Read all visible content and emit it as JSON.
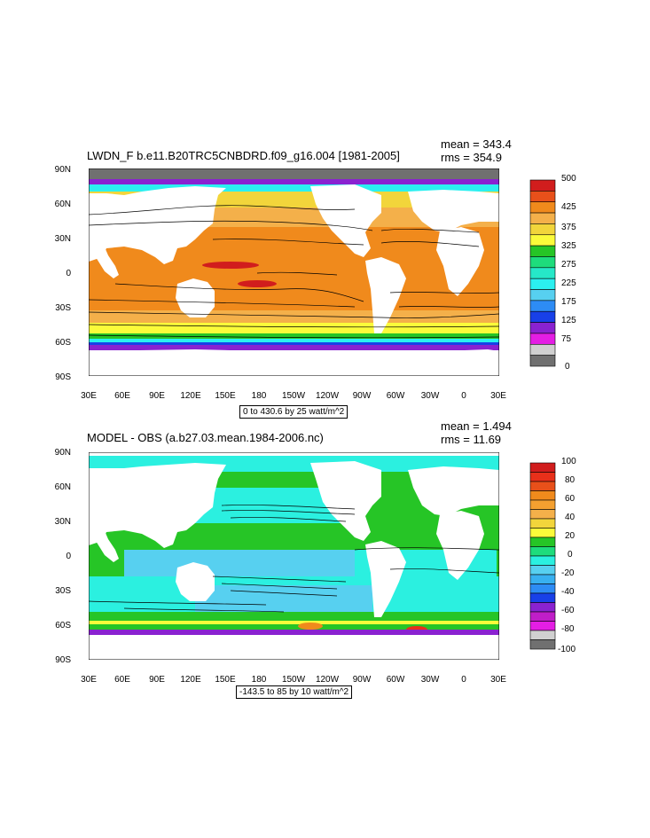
{
  "panels": [
    {
      "title": "LWDN_F b.e11.B20TRC5CNBDRD.f09_g16.004 [1981-2005]",
      "mean": "mean = 343.4",
      "rms": "rms = 354.9",
      "footer": "0 to 430.6 by 25 watt/m^2",
      "lat_ticks": [
        "90N",
        "60N",
        "30N",
        "0",
        "30S",
        "60S",
        "90S"
      ],
      "lon_ticks": [
        "30E",
        "60E",
        "90E",
        "120E",
        "150E",
        "180",
        "150W",
        "120W",
        "90W",
        "60W",
        "30W",
        "0",
        "30E"
      ],
      "colorbar": {
        "labels": [
          "500",
          "425",
          "375",
          "325",
          "275",
          "225",
          "175",
          "125",
          "75",
          "0"
        ],
        "colors": [
          "#d11d1d",
          "#e8501a",
          "#f08a1c",
          "#f4b04a",
          "#f2d53b",
          "#fbfb3a",
          "#26c526",
          "#1edc7c",
          "#26e8c8",
          "#2bf0f0",
          "#57d0f0",
          "#2d8cf5",
          "#1840e8",
          "#8a22d0",
          "#e41ee4",
          "#d0d0d0",
          "#707070"
        ]
      }
    },
    {
      "title": "MODEL - OBS (a.b27.03.mean.1984-2006.nc)",
      "mean": "mean = 1.494",
      "rms": "rms = 11.69",
      "footer": "-143.5 to 85 by 10 watt/m^2",
      "lat_ticks": [
        "90N",
        "60N",
        "30N",
        "0",
        "30S",
        "60S",
        "90S"
      ],
      "lon_ticks": [
        "30E",
        "60E",
        "90E",
        "120E",
        "150E",
        "180",
        "150W",
        "120W",
        "90W",
        "60W",
        "30W",
        "0",
        "30E"
      ],
      "colorbar": {
        "labels": [
          "100",
          "80",
          "60",
          "40",
          "20",
          "0",
          "-20",
          "-40",
          "-60",
          "-80",
          "-100"
        ],
        "colors": [
          "#d11d1d",
          "#e8301a",
          "#e8501a",
          "#f08a1c",
          "#f4a030",
          "#f4b04a",
          "#f2d53b",
          "#fbfb3a",
          "#26c526",
          "#1edc7c",
          "#2bf0e0",
          "#57d0f0",
          "#38b0f0",
          "#2d8cf5",
          "#1840e8",
          "#8a22d0",
          "#c01ec8",
          "#e41ee4",
          "#d0d0d0",
          "#707070"
        ]
      }
    }
  ]
}
